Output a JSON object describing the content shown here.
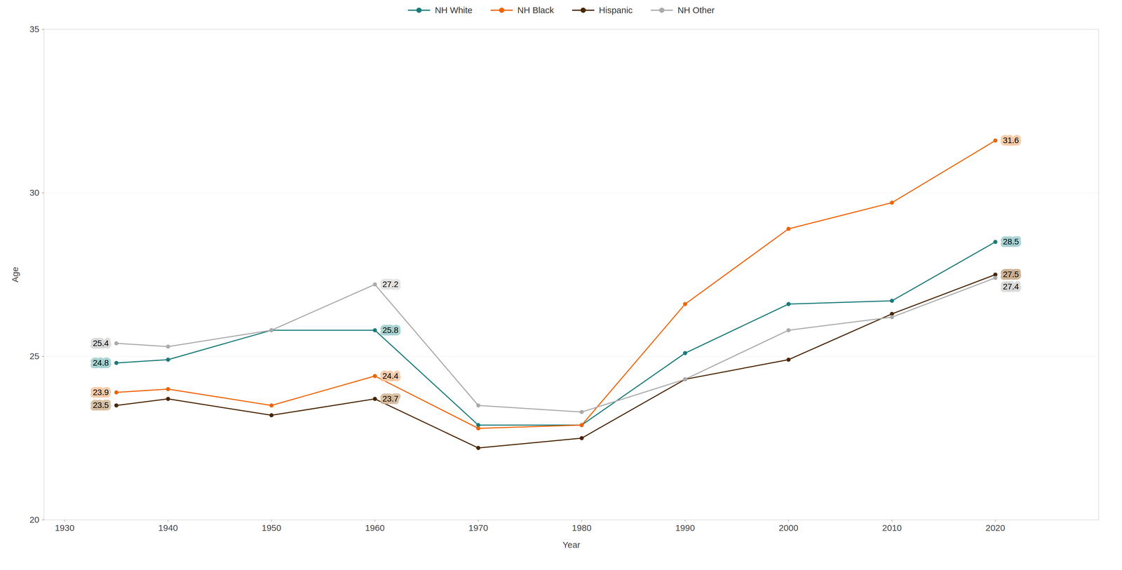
{
  "chart_data": {
    "type": "line",
    "xlabel": "Year",
    "ylabel": "Age",
    "x": [
      1935,
      1940,
      1950,
      1960,
      1970,
      1980,
      1990,
      2000,
      2010,
      2020
    ],
    "series": [
      {
        "name": "NH White",
        "color": "#1a7a7a",
        "values": [
          24.8,
          24.9,
          25.8,
          25.8,
          22.9,
          22.9,
          25.1,
          26.6,
          26.7,
          28.5
        ]
      },
      {
        "name": "NH Black",
        "color": "#f06400",
        "values": [
          23.9,
          24.0,
          23.5,
          24.4,
          22.8,
          22.9,
          26.6,
          28.9,
          29.7,
          31.6
        ]
      },
      {
        "name": "Hispanic",
        "color": "#4a2500",
        "values": [
          23.5,
          23.7,
          23.2,
          23.7,
          22.2,
          22.5,
          24.3,
          24.9,
          26.3,
          27.5
        ]
      },
      {
        "name": "NH Other",
        "color": "#aaaaaa",
        "values": [
          25.4,
          25.3,
          25.8,
          27.2,
          23.5,
          23.3,
          24.3,
          25.8,
          26.2,
          27.4
        ]
      }
    ],
    "xlim": [
      1928,
      2030
    ],
    "ylim": [
      20,
      35
    ],
    "xticks": [
      1930,
      1940,
      1950,
      1960,
      1970,
      1980,
      1990,
      2000,
      2010,
      2020
    ],
    "yticks": [
      20,
      25,
      30,
      35
    ],
    "grid": true,
    "marker": "circle",
    "legend": "top",
    "annotations": [
      {
        "text": "25.4",
        "x": 1935,
        "y": 25.4,
        "color": "#d6d6d6"
      },
      {
        "text": "24.8",
        "x": 1935,
        "y": 24.8,
        "color": "#9ecece"
      },
      {
        "text": "23.9",
        "x": 1935,
        "y": 23.9,
        "color": "#f5c5a0"
      },
      {
        "text": "23.5",
        "x": 1935,
        "y": 23.5,
        "color": "#d4b898"
      },
      {
        "text": "27.2",
        "x": 1960,
        "y": 27.2,
        "color": "#e0e0e0"
      },
      {
        "text": "25.8",
        "x": 1960,
        "y": 25.8,
        "color": "#9ecece"
      },
      {
        "text": "24.4",
        "x": 1960,
        "y": 24.4,
        "color": "#f5c5a0"
      },
      {
        "text": "23.7",
        "x": 1960,
        "y": 23.7,
        "color": "#d4b898"
      },
      {
        "text": "31.6",
        "x": 2020,
        "y": 31.6,
        "color": "#f5c5a0"
      },
      {
        "text": "28.5",
        "x": 2020,
        "y": 28.5,
        "color": "#9ecece"
      },
      {
        "text": "27.5",
        "x": 2020,
        "y": 27.5,
        "color": "#c8a888"
      },
      {
        "text": "27.4",
        "x": 2020,
        "y": 27.4,
        "color": "#d6d6d6"
      }
    ]
  }
}
